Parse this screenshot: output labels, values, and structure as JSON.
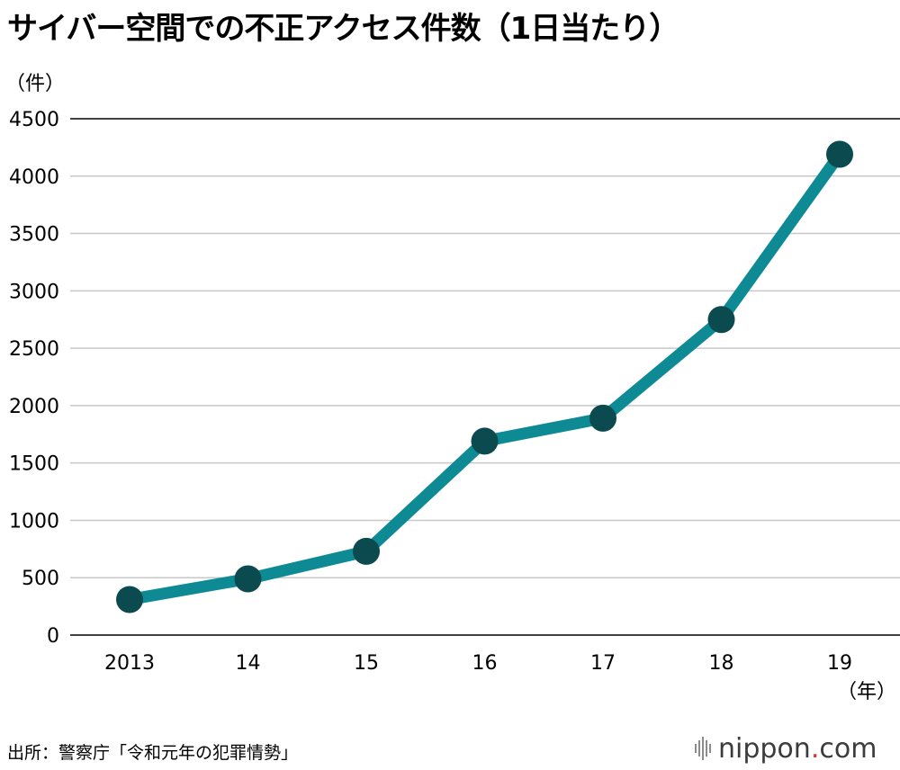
{
  "title": "サイバー空間での不正アクセス件数（1日当たり）",
  "source": "出所：警察庁「令和元年の犯罪情勢」",
  "logo": {
    "name": "nippon",
    "dot": ".",
    "suffix": "com"
  },
  "colors": {
    "line": "#0e8a95",
    "marker": "#0b4a4e",
    "grid": "#c8c8c8",
    "axis": "#000000",
    "logo_dot": "#e0302a"
  },
  "chart_data": {
    "type": "line",
    "categories": [
      "2013",
      "14",
      "15",
      "16",
      "17",
      "18",
      "19"
    ],
    "values": [
      310,
      490,
      730,
      1690,
      1890,
      2750,
      4190
    ],
    "yticks": [
      "0",
      "500",
      "1000",
      "1500",
      "2000",
      "2500",
      "3000",
      "3500",
      "4000",
      "4500"
    ],
    "ylim": [
      0,
      4500
    ],
    "ylabel": "（件）",
    "xlabel": "（年）",
    "grid": true,
    "legend": "none"
  }
}
